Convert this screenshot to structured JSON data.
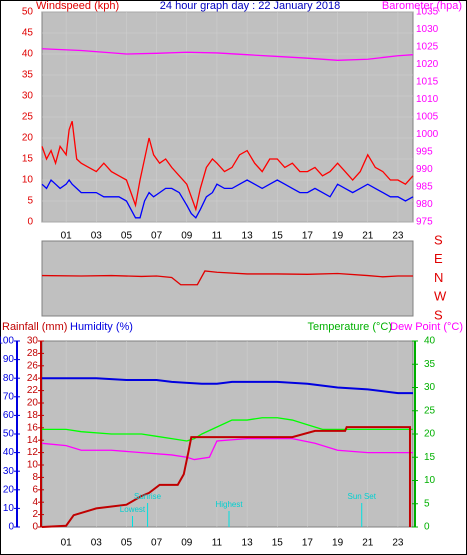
{
  "chart_data": [
    {
      "type": "line",
      "title": "24 hour graph day : 22 January 2018",
      "ylabel": "Windspeed (kph)",
      "y2label": "Barometer (hpa)",
      "xlim": [
        -0.6,
        24
      ],
      "xticks": [
        {
          "value": 1,
          "label": "01"
        },
        {
          "value": 3,
          "label": "03"
        },
        {
          "value": 5,
          "label": "05"
        },
        {
          "value": 7,
          "label": "07"
        },
        {
          "value": 9,
          "label": "09"
        },
        11,
        13,
        15,
        17,
        19,
        21,
        23
      ],
      "ylim": [
        0,
        50
      ],
      "yticks": [
        0,
        5,
        10,
        15,
        20,
        25,
        30,
        35,
        40,
        45,
        50
      ],
      "ycolor": "#e00000",
      "y2lim": [
        975,
        1035
      ],
      "y2ticks": [
        975,
        980,
        985,
        990,
        995,
        1000,
        1005,
        1010,
        1015,
        1020,
        1025,
        1030,
        1035
      ],
      "y2color": "#ff00ff",
      "grid": true,
      "series": [
        {
          "color": "#ff0000",
          "x": [
            -0.6,
            -0.3,
            0,
            0.3,
            0.6,
            1,
            1.2,
            1.4,
            1.7,
            2,
            2.5,
            3,
            3.5,
            4,
            4.5,
            5,
            5.3,
            5.6,
            5.9,
            6.2,
            6.5,
            6.8,
            7.2,
            7.6,
            8,
            8.5,
            9,
            9.3,
            9.6,
            9.9,
            10.3,
            10.7,
            11,
            11.5,
            12,
            12.5,
            13,
            13.5,
            14,
            14.5,
            15,
            15.5,
            16,
            16.5,
            17,
            17.5,
            18,
            18.5,
            19,
            19.5,
            20,
            20.5,
            21,
            21.5,
            22,
            22.5,
            23,
            23.5,
            24
          ],
          "values": [
            18,
            15,
            17,
            14,
            18,
            16,
            22,
            24,
            15,
            14,
            13,
            12,
            14,
            12,
            11,
            10,
            7,
            4,
            10,
            15,
            20,
            16,
            14,
            15,
            13,
            11,
            9,
            6,
            3,
            8,
            13,
            15,
            14,
            12,
            13,
            16,
            17,
            14,
            12,
            15,
            15,
            13,
            14,
            12,
            12,
            13,
            11,
            12,
            14,
            12,
            10,
            12,
            16,
            13,
            12,
            10,
            10,
            9,
            11
          ]
        },
        {
          "color": "#0000ff",
          "x": [
            -0.6,
            -0.3,
            0,
            0.3,
            0.6,
            1,
            1.2,
            1.4,
            1.7,
            2,
            2.5,
            3,
            3.5,
            4,
            4.5,
            5,
            5.3,
            5.6,
            5.9,
            6.2,
            6.5,
            6.8,
            7.2,
            7.6,
            8,
            8.5,
            9,
            9.3,
            9.6,
            9.9,
            10.3,
            10.7,
            11,
            11.5,
            12,
            12.5,
            13,
            13.5,
            14,
            14.5,
            15,
            15.5,
            16,
            16.5,
            17,
            17.5,
            18,
            18.5,
            19,
            19.5,
            20,
            20.5,
            21,
            21.5,
            22,
            22.5,
            23,
            23.5,
            24
          ],
          "values": [
            9,
            8,
            10,
            9,
            8,
            9,
            10,
            9,
            8,
            7,
            7,
            7,
            6,
            6,
            6,
            5,
            3,
            1,
            1,
            5,
            7,
            6,
            7,
            8,
            8,
            7,
            4,
            2,
            1,
            3,
            6,
            7,
            9,
            8,
            8,
            9,
            10,
            9,
            8,
            9,
            10,
            9,
            8,
            7,
            7,
            8,
            7,
            6,
            9,
            8,
            7,
            8,
            9,
            8,
            7,
            6,
            6,
            5,
            6
          ]
        },
        {
          "color": "#ff00ff",
          "axis": "y2",
          "x": [
            -0.6,
            2,
            5,
            7,
            9,
            11,
            13,
            15,
            17,
            19,
            21,
            23,
            24
          ],
          "values": [
            1024.5,
            1024,
            1023,
            1023.2,
            1023.5,
            1023.3,
            1022.8,
            1022.3,
            1021.8,
            1021.2,
            1021.5,
            1022.5,
            1022.8
          ]
        }
      ]
    },
    {
      "type": "line",
      "xlim": [
        -0.6,
        24
      ],
      "ylim": [
        -180,
        180
      ],
      "ycolor": "#e00000",
      "yticks": [
        {
          "value": 180,
          "label": "S"
        },
        {
          "value": 90,
          "label": "E"
        },
        {
          "value": 0,
          "label": "N"
        },
        {
          "value": -90,
          "label": "W"
        },
        {
          "value": -180,
          "label": "S"
        }
      ],
      "series": [
        {
          "color": "#e00000",
          "x": [
            -0.6,
            2,
            4,
            6,
            7,
            8,
            8.6,
            9.7,
            10.2,
            11,
            13,
            15,
            17,
            19,
            21,
            22,
            23,
            24
          ],
          "values": [
            14,
            12,
            14,
            10,
            12,
            5,
            -30,
            -30,
            36,
            30,
            22,
            22,
            20,
            24,
            14,
            8,
            12,
            12
          ]
        }
      ]
    },
    {
      "type": "line",
      "ylabel": "Rainfall (mm)",
      "y3label": "Humidity (%)",
      "xlim": [
        -0.6,
        24
      ],
      "xticks": [
        {
          "value": 1,
          "label": "01"
        },
        {
          "value": 3,
          "label": "03"
        },
        {
          "value": 5,
          "label": "05"
        },
        {
          "value": 7,
          "label": "07"
        },
        {
          "value": 9,
          "label": "09"
        },
        11,
        13,
        15,
        17,
        19,
        21,
        23
      ],
      "ylim": [
        0,
        30
      ],
      "yticks": [
        0,
        2,
        4,
        6,
        8,
        10,
        12,
        14,
        16,
        18,
        20,
        22,
        24,
        26,
        28,
        30
      ],
      "ycolor": "#c00000",
      "y2lim": [
        0,
        40
      ],
      "y2ticks": [
        0,
        5,
        10,
        15,
        20,
        25,
        30,
        35,
        40
      ],
      "y2color": "#00b000",
      "y3lim": [
        0,
        100
      ],
      "y3ticks": [
        0,
        10,
        20,
        30,
        40,
        50,
        60,
        70,
        80,
        90,
        100
      ],
      "y3color": "#0000e0",
      "grid": true,
      "series": [
        {
          "color": "#0000e0",
          "axis": "y3",
          "x": [
            -0.6,
            3,
            5,
            7,
            8,
            10,
            11,
            12,
            15,
            17,
            19,
            21,
            23,
            24
          ],
          "values": [
            80,
            80,
            79,
            79,
            78,
            77,
            77,
            78,
            78,
            77,
            75,
            74,
            72,
            72
          ]
        },
        {
          "name": "Temperature (°C)",
          "color": "#00ff00",
          "axis": "y2",
          "x": [
            -0.6,
            1,
            2,
            4,
            6,
            7,
            8,
            9,
            9.5,
            10,
            11,
            12,
            13,
            14,
            15,
            16,
            17,
            18,
            19,
            21,
            24
          ],
          "values": [
            21,
            21,
            20.5,
            20,
            20,
            19.5,
            19,
            18.5,
            19,
            20,
            21.5,
            23,
            23,
            23.5,
            23.5,
            23,
            22,
            21,
            21,
            21,
            21
          ]
        },
        {
          "name": "Dew Point (°C)",
          "color": "#ff00ff",
          "axis": "y2",
          "x": [
            -0.6,
            1,
            2,
            4,
            6,
            8,
            9,
            9.5,
            10.5,
            11,
            13,
            16,
            17.5,
            19,
            21,
            24
          ],
          "values": [
            18,
            17.5,
            16.5,
            16.5,
            16,
            15.5,
            15,
            14.5,
            15,
            18.5,
            19,
            19,
            18,
            16.5,
            16,
            16
          ]
        },
        {
          "color": "#c00000",
          "x": [
            -0.6,
            1,
            1.5,
            3,
            5,
            6,
            6.5,
            7.2,
            8.4,
            8.8,
            9.1,
            9.3,
            16,
            17.5,
            19.5,
            19.6,
            23.8,
            23.8
          ],
          "values": [
            0,
            0.2,
            1.9,
            3,
            3.6,
            5,
            5.5,
            6.8,
            6.8,
            8.5,
            12,
            14.5,
            14.5,
            15.5,
            15.5,
            16.1,
            16.1,
            0
          ]
        }
      ],
      "annotations": [
        {
          "text": "Sunrise",
          "x": 6.4
        },
        {
          "text": "Lowest",
          "x": 5.4
        },
        {
          "text": "Highest",
          "x": 11.8
        },
        {
          "text": "Sun Set",
          "x": 20.6
        }
      ]
    }
  ]
}
